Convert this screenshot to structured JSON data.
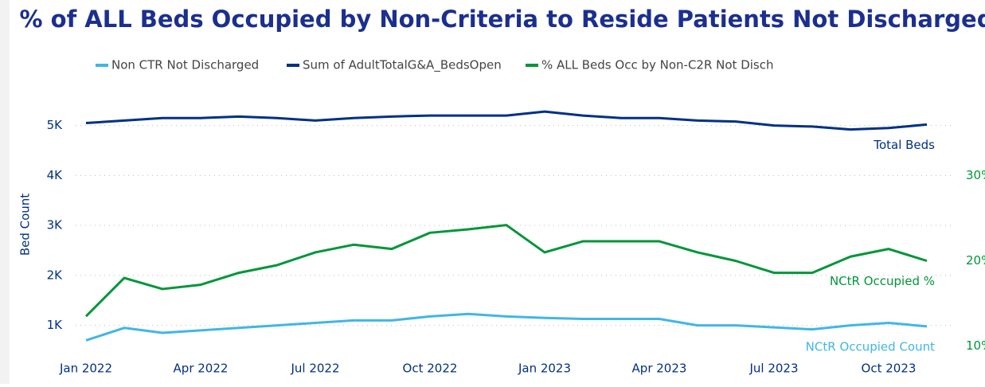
{
  "chart_data": {
    "type": "line",
    "title": "% of ALL Beds Occupied by Non-Criteria to Reside Patients Not Discharged",
    "y_label": "Bed Count",
    "categories": [
      "Jan 2022",
      null,
      null,
      "Apr 2022",
      null,
      null,
      "Jul 2022",
      null,
      null,
      "Oct 2022",
      null,
      null,
      "Jan 2023",
      null,
      null,
      "Apr 2023",
      null,
      null,
      "Jul 2023",
      null,
      null,
      "Oct 2023",
      null
    ],
    "series": [
      {
        "name": "Non CTR Not Discharged",
        "color": "#41b6e6",
        "values": [
          700,
          950,
          850,
          900,
          950,
          1000,
          1050,
          1100,
          1100,
          1180,
          1230,
          1180,
          1150,
          1130,
          1130,
          1130,
          1000,
          1000,
          960,
          920,
          1000,
          1050,
          980
        ]
      },
      {
        "name": "Sum of AdultTotalG&A_BedsOpen",
        "color": "#003087",
        "values": [
          5050,
          5100,
          5150,
          5150,
          5180,
          5150,
          5100,
          5150,
          5180,
          5200,
          5200,
          5200,
          5280,
          5200,
          5150,
          5150,
          5100,
          5080,
          5000,
          4980,
          4920,
          4950,
          5020
        ]
      },
      {
        "name": "% ALL Beds Occ by Non-C2R Not Disch",
        "color": "#009639",
        "axis": "y2",
        "values": [
          13.5,
          18,
          16.7,
          17.2,
          18.6,
          19.5,
          21,
          21.9,
          21.4,
          23.3,
          23.7,
          24.2,
          21,
          22.3,
          22.3,
          22.3,
          21,
          20,
          18.6,
          18.6,
          20.5,
          21.4,
          20
        ]
      }
    ],
    "annotations": [
      {
        "text": "Total Beds",
        "series": 1
      },
      {
        "text": "NCtR Occupied %",
        "series": 2
      },
      {
        "text": "NCtR Occupied Count",
        "series": 0
      }
    ],
    "ylim": [
      500,
      5600
    ],
    "yticks": [
      {
        "value": 1000,
        "label": "1K"
      },
      {
        "value": 2000,
        "label": "2K"
      },
      {
        "value": 3000,
        "label": "3K"
      },
      {
        "value": 4000,
        "label": "4K"
      },
      {
        "value": 5000,
        "label": "5K"
      }
    ],
    "y2lim": [
      9.5,
      39.4
    ],
    "y2ticks": [
      {
        "value": 10,
        "label": "10%"
      },
      {
        "value": 20,
        "label": "20%"
      },
      {
        "value": 30,
        "label": "30%"
      }
    ],
    "grid": true
  }
}
